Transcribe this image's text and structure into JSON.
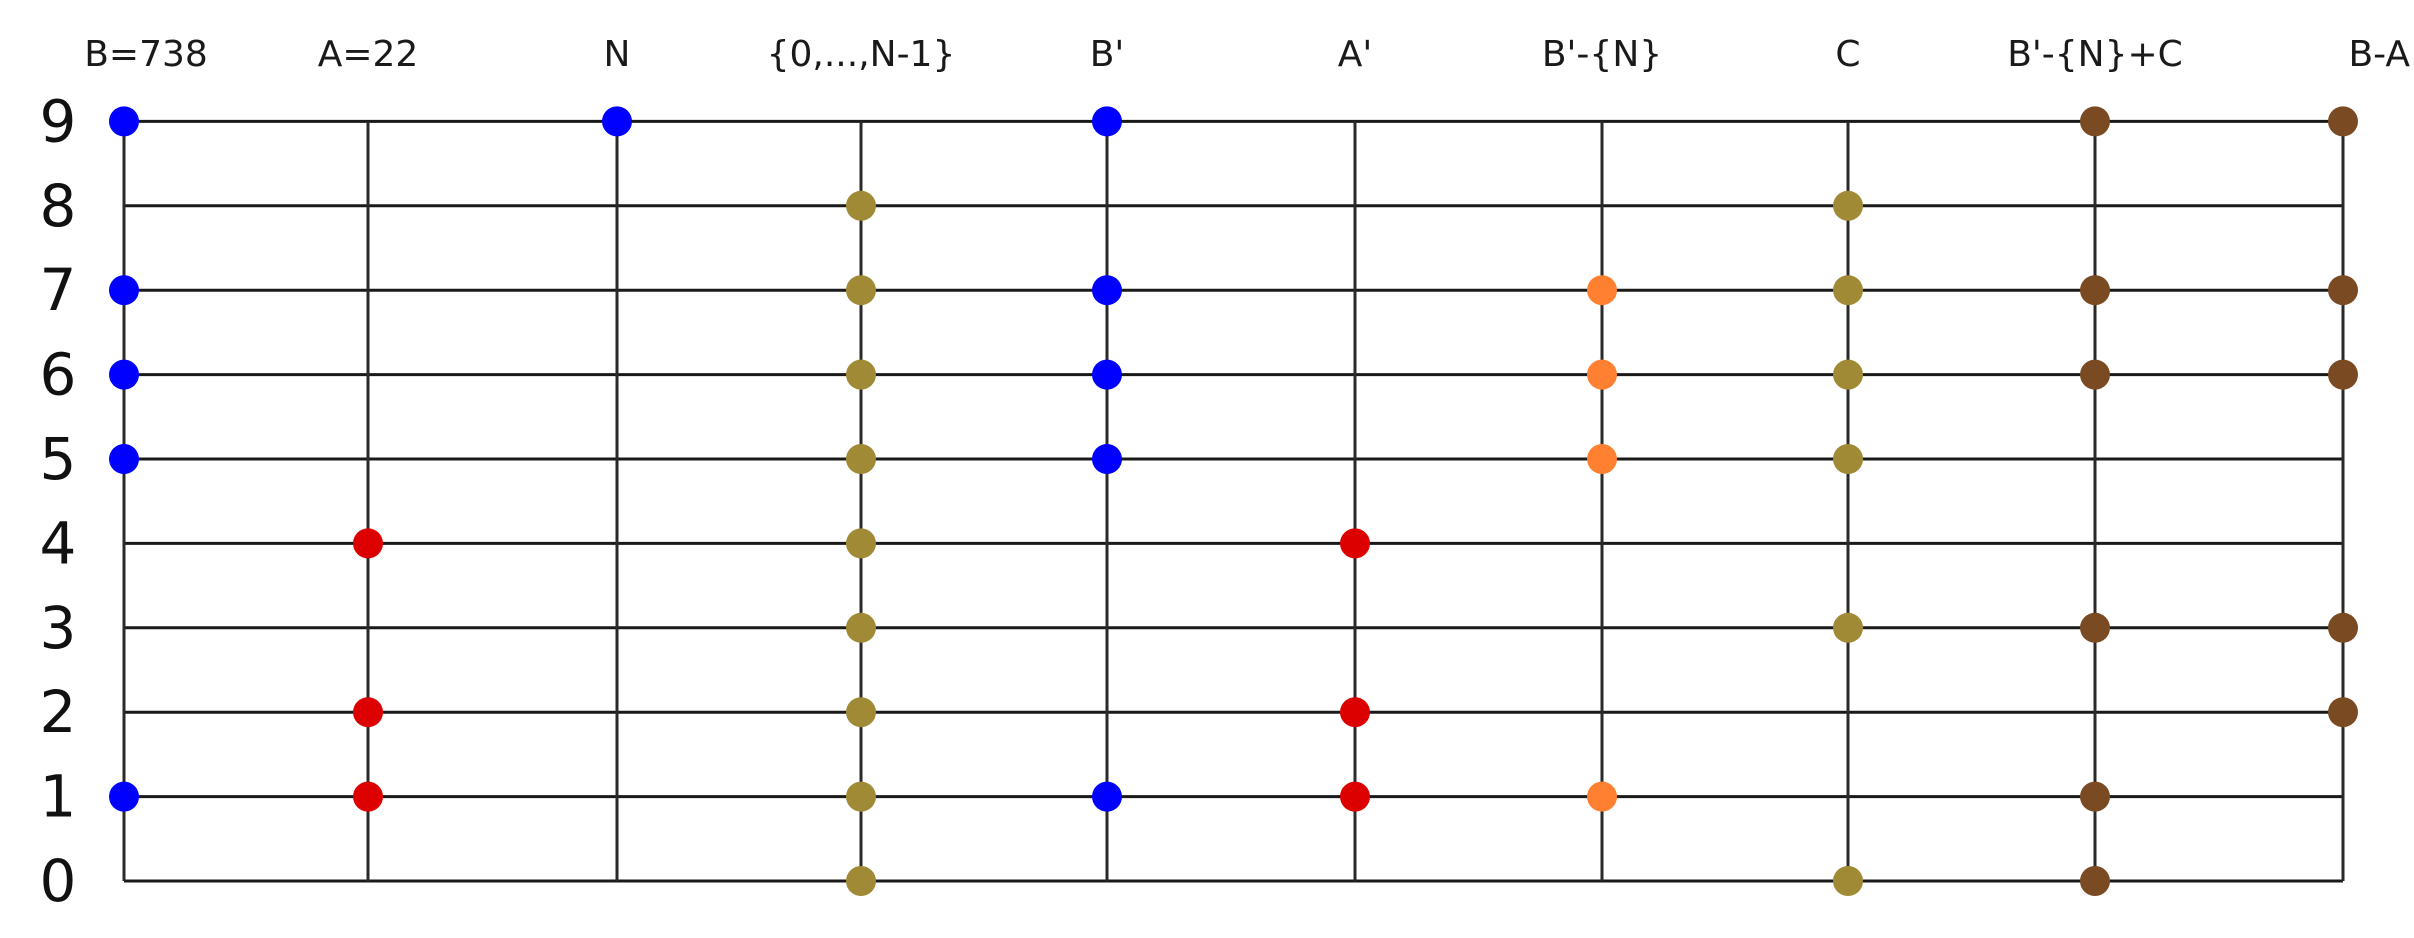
{
  "columns": [
    {
      "label": "B=738",
      "points": [
        9,
        7,
        6,
        5,
        1
      ],
      "color": "#0000ff"
    },
    {
      "label": "A=22",
      "points": [
        4,
        2,
        1
      ],
      "color": "#dd0000"
    },
    {
      "label": "N",
      "points": [
        9
      ],
      "color": "#0000ff"
    },
    {
      "label": "{0,...,N-1}",
      "points": [
        8,
        7,
        6,
        5,
        4,
        3,
        2,
        1,
        0
      ],
      "color": "#a08a35"
    },
    {
      "label": "B'",
      "points": [
        9,
        7,
        6,
        5,
        1
      ],
      "color": "#0000ff"
    },
    {
      "label": "A'",
      "points": [
        4,
        2,
        1
      ],
      "color": "#dd0000"
    },
    {
      "label": "B'-{N}",
      "points": [
        7,
        6,
        5,
        1
      ],
      "color": "#ff8030"
    },
    {
      "label": "C",
      "points": [
        8,
        7,
        6,
        5,
        3,
        0
      ],
      "color": "#a08a35"
    },
    {
      "label": "B'-{N}+C",
      "points": [
        9,
        7,
        6,
        3,
        1,
        0
      ],
      "color": "#7a4a22"
    },
    {
      "label": "B-A",
      "points": [
        9,
        7,
        6,
        3,
        2
      ],
      "color": "#7a4a22"
    }
  ],
  "rows": [
    "0",
    "1",
    "2",
    "3",
    "4",
    "5",
    "6",
    "7",
    "8",
    "9"
  ],
  "colors": {
    "grid": "#1a1a1a",
    "text": "#111111"
  }
}
